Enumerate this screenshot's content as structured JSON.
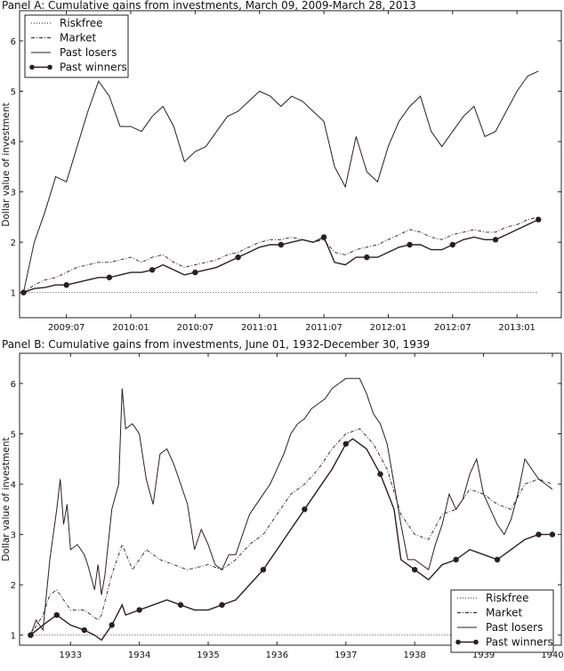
{
  "chart_data": [
    {
      "type": "line",
      "title": "Panel A: Cumulative gains from investments, March 09, 2009-March 28, 2013",
      "xlabel": "",
      "ylabel": "Dollar value of investment",
      "ylim": [
        0.5,
        6.6
      ],
      "xlim": [
        "2009-02-20",
        "2013-05-05"
      ],
      "xticks": [
        "2009:07",
        "2010:01",
        "2010:07",
        "2011:01",
        "2011:07",
        "2012:01",
        "2012:07",
        "2013:01"
      ],
      "xtick_dates": [
        "2009-07",
        "2010-01",
        "2010-07",
        "2011-01",
        "2011-07",
        "2012-01",
        "2012-07",
        "2013-01"
      ],
      "yticks": [
        1,
        2,
        3,
        4,
        5,
        6
      ],
      "grid": false,
      "legend_position": "top-left",
      "x": [
        "2009-03",
        "2009-04",
        "2009-05",
        "2009-06",
        "2009-07",
        "2009-08",
        "2009-09",
        "2009-10",
        "2009-11",
        "2009-12",
        "2010-01",
        "2010-02",
        "2010-03",
        "2010-04",
        "2010-05",
        "2010-06",
        "2010-07",
        "2010-08",
        "2010-09",
        "2010-10",
        "2010-11",
        "2010-12",
        "2011-01",
        "2011-02",
        "2011-03",
        "2011-04",
        "2011-05",
        "2011-06",
        "2011-07",
        "2011-08",
        "2011-09",
        "2011-10",
        "2011-11",
        "2011-12",
        "2012-01",
        "2012-02",
        "2012-03",
        "2012-04",
        "2012-05",
        "2012-06",
        "2012-07",
        "2012-08",
        "2012-09",
        "2012-10",
        "2012-11",
        "2012-12",
        "2013-01",
        "2013-02",
        "2013-03"
      ],
      "series": [
        {
          "name": "Riskfree",
          "style": "dotted",
          "values": [
            1,
            1,
            1,
            1,
            1,
            1,
            1,
            1,
            1,
            1,
            1,
            1,
            1,
            1,
            1,
            1,
            1,
            1,
            1,
            1,
            1,
            1,
            1,
            1,
            1,
            1,
            1,
            1,
            1,
            1,
            1,
            1,
            1,
            1,
            1,
            1,
            1,
            1,
            1,
            1,
            1,
            1,
            1,
            1,
            1,
            1,
            1,
            1,
            1
          ]
        },
        {
          "name": "Market",
          "style": "dashdot",
          "values": [
            1.0,
            1.15,
            1.25,
            1.3,
            1.4,
            1.5,
            1.55,
            1.6,
            1.6,
            1.65,
            1.7,
            1.6,
            1.7,
            1.75,
            1.6,
            1.5,
            1.55,
            1.6,
            1.65,
            1.75,
            1.8,
            1.9,
            2.0,
            2.05,
            2.05,
            2.1,
            2.05,
            2.0,
            2.05,
            1.8,
            1.75,
            1.85,
            1.9,
            1.95,
            2.05,
            2.15,
            2.25,
            2.2,
            2.1,
            2.05,
            2.15,
            2.2,
            2.25,
            2.2,
            2.2,
            2.3,
            2.35,
            2.45,
            2.5
          ]
        },
        {
          "name": "Past losers",
          "style": "solid",
          "values": [
            1.0,
            2.0,
            2.6,
            3.3,
            3.2,
            3.9,
            4.6,
            5.2,
            4.9,
            4.3,
            4.3,
            4.2,
            4.5,
            4.7,
            4.3,
            3.6,
            3.8,
            3.9,
            4.2,
            4.5,
            4.6,
            4.8,
            5.0,
            4.9,
            4.7,
            4.9,
            4.8,
            4.6,
            4.4,
            3.5,
            3.1,
            4.1,
            3.4,
            3.2,
            3.9,
            4.4,
            4.7,
            4.9,
            4.2,
            3.9,
            4.2,
            4.5,
            4.7,
            4.1,
            4.2,
            4.6,
            5.0,
            5.3,
            5.4
          ]
        },
        {
          "name": "Past winners",
          "style": "solid-markers",
          "values": [
            1.0,
            1.08,
            1.1,
            1.15,
            1.15,
            1.2,
            1.25,
            1.3,
            1.3,
            1.35,
            1.4,
            1.4,
            1.45,
            1.55,
            1.45,
            1.35,
            1.4,
            1.45,
            1.5,
            1.6,
            1.7,
            1.8,
            1.9,
            1.95,
            1.95,
            2.0,
            2.05,
            2.0,
            2.1,
            1.6,
            1.55,
            1.7,
            1.7,
            1.7,
            1.8,
            1.9,
            1.95,
            1.95,
            1.85,
            1.85,
            1.95,
            2.05,
            2.1,
            2.05,
            2.05,
            2.15,
            2.25,
            2.35,
            2.45
          ]
        }
      ]
    },
    {
      "type": "line",
      "title": "Panel B: Cumulative gains from investments, June 01, 1932-December 30, 1939",
      "xlabel": "",
      "ylabel": "Dollar value of investment",
      "ylim": [
        0.8,
        6.6
      ],
      "xlim": [
        1932.26,
        1940.13
      ],
      "xticks": [
        "1933",
        "1934",
        "1935",
        "1936",
        "1937",
        "1938",
        "1939",
        "1940"
      ],
      "yticks": [
        1,
        2,
        3,
        4,
        5,
        6
      ],
      "grid": false,
      "legend_position": "bottom-right",
      "series": [
        {
          "name": "Riskfree",
          "style": "dotted",
          "x": [
            1932.42,
            1940.0
          ],
          "values": [
            1,
            1
          ]
        },
        {
          "name": "Market",
          "style": "dashdot",
          "x": [
            1932.42,
            1932.6,
            1932.7,
            1932.8,
            1932.9,
            1933.0,
            1933.2,
            1933.4,
            1933.45,
            1933.6,
            1933.75,
            1933.9,
            1934.1,
            1934.3,
            1934.5,
            1934.7,
            1935.0,
            1935.2,
            1935.4,
            1935.6,
            1935.8,
            1936.0,
            1936.2,
            1936.4,
            1936.6,
            1936.8,
            1937.0,
            1937.2,
            1937.4,
            1937.6,
            1937.8,
            1938.0,
            1938.2,
            1938.4,
            1938.6,
            1938.8,
            1939.0,
            1939.2,
            1939.4,
            1939.6,
            1939.8,
            1940.0
          ],
          "values": [
            1.0,
            1.4,
            1.8,
            1.9,
            1.7,
            1.5,
            1.5,
            1.3,
            1.4,
            2.2,
            2.8,
            2.3,
            2.7,
            2.5,
            2.4,
            2.3,
            2.4,
            2.3,
            2.5,
            2.8,
            3.0,
            3.4,
            3.8,
            4.0,
            4.3,
            4.7,
            5.0,
            5.1,
            4.8,
            4.3,
            3.4,
            3.0,
            2.9,
            3.4,
            3.5,
            3.9,
            3.8,
            3.6,
            3.5,
            4.0,
            4.1,
            4.0
          ]
        },
        {
          "name": "Past losers",
          "style": "solid",
          "x": [
            1932.42,
            1932.5,
            1932.6,
            1932.7,
            1932.8,
            1932.85,
            1932.9,
            1932.95,
            1933.0,
            1933.1,
            1933.2,
            1933.25,
            1933.35,
            1933.4,
            1933.45,
            1933.5,
            1933.6,
            1933.7,
            1933.75,
            1933.8,
            1933.9,
            1934.0,
            1934.1,
            1934.2,
            1934.3,
            1934.4,
            1934.5,
            1934.6,
            1934.7,
            1934.8,
            1934.9,
            1935.0,
            1935.1,
            1935.2,
            1935.3,
            1935.4,
            1935.5,
            1935.6,
            1935.7,
            1935.8,
            1935.9,
            1936.0,
            1936.1,
            1936.2,
            1936.3,
            1936.4,
            1936.5,
            1936.6,
            1936.7,
            1936.8,
            1936.9,
            1937.0,
            1937.1,
            1937.2,
            1937.3,
            1937.4,
            1937.5,
            1937.6,
            1937.7,
            1937.8,
            1937.9,
            1938.0,
            1938.1,
            1938.2,
            1938.3,
            1938.4,
            1938.5,
            1938.6,
            1938.7,
            1938.8,
            1938.9,
            1939.0,
            1939.1,
            1939.2,
            1939.3,
            1939.4,
            1939.5,
            1939.6,
            1939.7,
            1939.8,
            1939.9,
            1940.0
          ],
          "values": [
            1.0,
            1.3,
            1.1,
            2.5,
            3.5,
            4.1,
            3.2,
            3.6,
            2.7,
            2.8,
            2.6,
            2.4,
            1.9,
            2.4,
            1.8,
            2.2,
            3.5,
            4.0,
            5.9,
            5.1,
            5.2,
            5.0,
            4.1,
            3.6,
            4.6,
            4.7,
            4.4,
            4.0,
            3.6,
            2.7,
            3.1,
            2.8,
            2.4,
            2.3,
            2.6,
            2.6,
            3.0,
            3.4,
            3.6,
            3.8,
            4.0,
            4.3,
            4.6,
            5.0,
            5.2,
            5.3,
            5.5,
            5.6,
            5.7,
            5.9,
            6.0,
            6.1,
            6.1,
            6.1,
            5.8,
            5.4,
            5.2,
            4.8,
            4.0,
            3.2,
            2.5,
            2.5,
            2.4,
            2.3,
            2.8,
            3.2,
            3.8,
            3.5,
            3.7,
            4.2,
            4.5,
            3.8,
            3.5,
            3.2,
            3.0,
            3.3,
            3.8,
            4.5,
            4.3,
            4.1,
            4.0,
            3.9
          ]
        },
        {
          "name": "Past winners",
          "style": "solid-markers",
          "x": [
            1932.42,
            1932.6,
            1932.7,
            1932.8,
            1932.9,
            1933.0,
            1933.2,
            1933.35,
            1933.45,
            1933.6,
            1933.75,
            1933.8,
            1934.0,
            1934.2,
            1934.4,
            1934.6,
            1934.8,
            1935.0,
            1935.2,
            1935.4,
            1935.6,
            1935.8,
            1936.0,
            1936.2,
            1936.4,
            1936.6,
            1936.8,
            1937.0,
            1937.1,
            1937.3,
            1937.5,
            1937.7,
            1937.8,
            1938.0,
            1938.2,
            1938.4,
            1938.6,
            1938.8,
            1939.0,
            1939.2,
            1939.4,
            1939.6,
            1939.8,
            1940.0
          ],
          "values": [
            1.0,
            1.2,
            1.3,
            1.4,
            1.3,
            1.2,
            1.1,
            1.0,
            0.9,
            1.2,
            1.6,
            1.4,
            1.5,
            1.6,
            1.7,
            1.6,
            1.5,
            1.5,
            1.6,
            1.7,
            2.0,
            2.3,
            2.7,
            3.1,
            3.5,
            3.9,
            4.3,
            4.8,
            4.9,
            4.7,
            4.2,
            3.5,
            2.5,
            2.3,
            2.1,
            2.4,
            2.5,
            2.7,
            2.6,
            2.5,
            2.7,
            2.9,
            3.0,
            3.0
          ]
        }
      ]
    }
  ]
}
